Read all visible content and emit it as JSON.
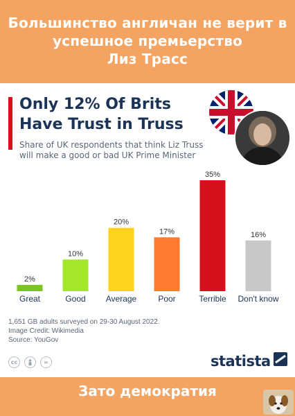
{
  "banner": {
    "top_lines": [
      "Большинство англичан не верит в",
      "успешное премьерство",
      "Лиз Трасс"
    ],
    "bottom_text": "Зато демократия"
  },
  "card": {
    "title_line1": "Only 12% Of Brits",
    "title_line2": "Have Trust in Truss",
    "subtitle_line1": "Share of UK respondents that think Liz Truss",
    "subtitle_line2": "will make a good or bad UK Prime Minister",
    "notes": [
      "1,651 GB adults surveyed on 29-30 August 2022.",
      "Image Credit: Wikimedia",
      "Source: YouGov"
    ],
    "brand": "statista"
  },
  "colors": {
    "banner": "#f3a463",
    "title": "#1b3356",
    "accent_bar": "#d6101c"
  },
  "icons": [
    "union-jack-flag",
    "liz-truss-portrait",
    "cc-icon",
    "person-icon",
    "equals-icon",
    "statista-logo-icon",
    "dog-avatar"
  ],
  "chart_data": {
    "type": "bar",
    "title": "Only 12% Of Brits Have Trust in Truss",
    "subtitle": "Share of UK respondents that think Liz Truss will make a good or bad UK Prime Minister",
    "categories": [
      "Great",
      "Good",
      "Average",
      "Poor",
      "Terrible",
      "Don't know"
    ],
    "values": [
      2,
      10,
      20,
      17,
      35,
      16
    ],
    "value_labels": [
      "2%",
      "10%",
      "20%",
      "17%",
      "35%",
      "16%"
    ],
    "colors": [
      "#7ac51f",
      "#a3e62a",
      "#ffd21f",
      "#ff7a2f",
      "#d6101c",
      "#c8c8c8"
    ],
    "ylim": [
      0,
      35
    ],
    "grid": false,
    "xlabel": "",
    "ylabel": ""
  }
}
